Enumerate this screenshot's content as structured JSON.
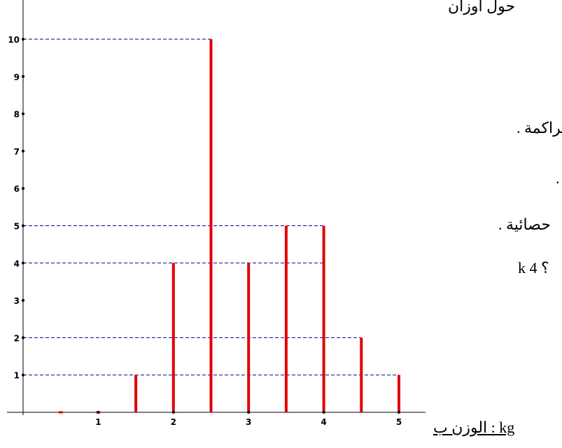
{
  "chart_data": {
    "type": "bar",
    "x": [
      0.5,
      1,
      1.5,
      2,
      2.5,
      3,
      3.5,
      4,
      4.5,
      5
    ],
    "values": [
      0,
      0,
      1,
      4,
      10,
      4,
      5,
      5,
      2,
      1
    ],
    "x_ticks": [
      "1",
      "2",
      "3",
      "4",
      "5"
    ],
    "y_ticks": [
      "1",
      "2",
      "3",
      "4",
      "5",
      "6",
      "7",
      "8",
      "9",
      "10"
    ],
    "guide_levels": [
      1,
      2,
      4,
      5,
      10
    ],
    "xlim": [
      0,
      5.4
    ],
    "ylim": [
      0,
      11
    ],
    "xunit_label": "الوزن ب   :   kg",
    "bar_color": "#e00000",
    "guide_color": "#00008b",
    "grid": false
  },
  "cut_text": {
    "t1": "حول أوزان",
    "t2": "متراكمة .",
    "t3": ".",
    "t4": "حصائية .",
    "t5": "؟ 4 k"
  }
}
